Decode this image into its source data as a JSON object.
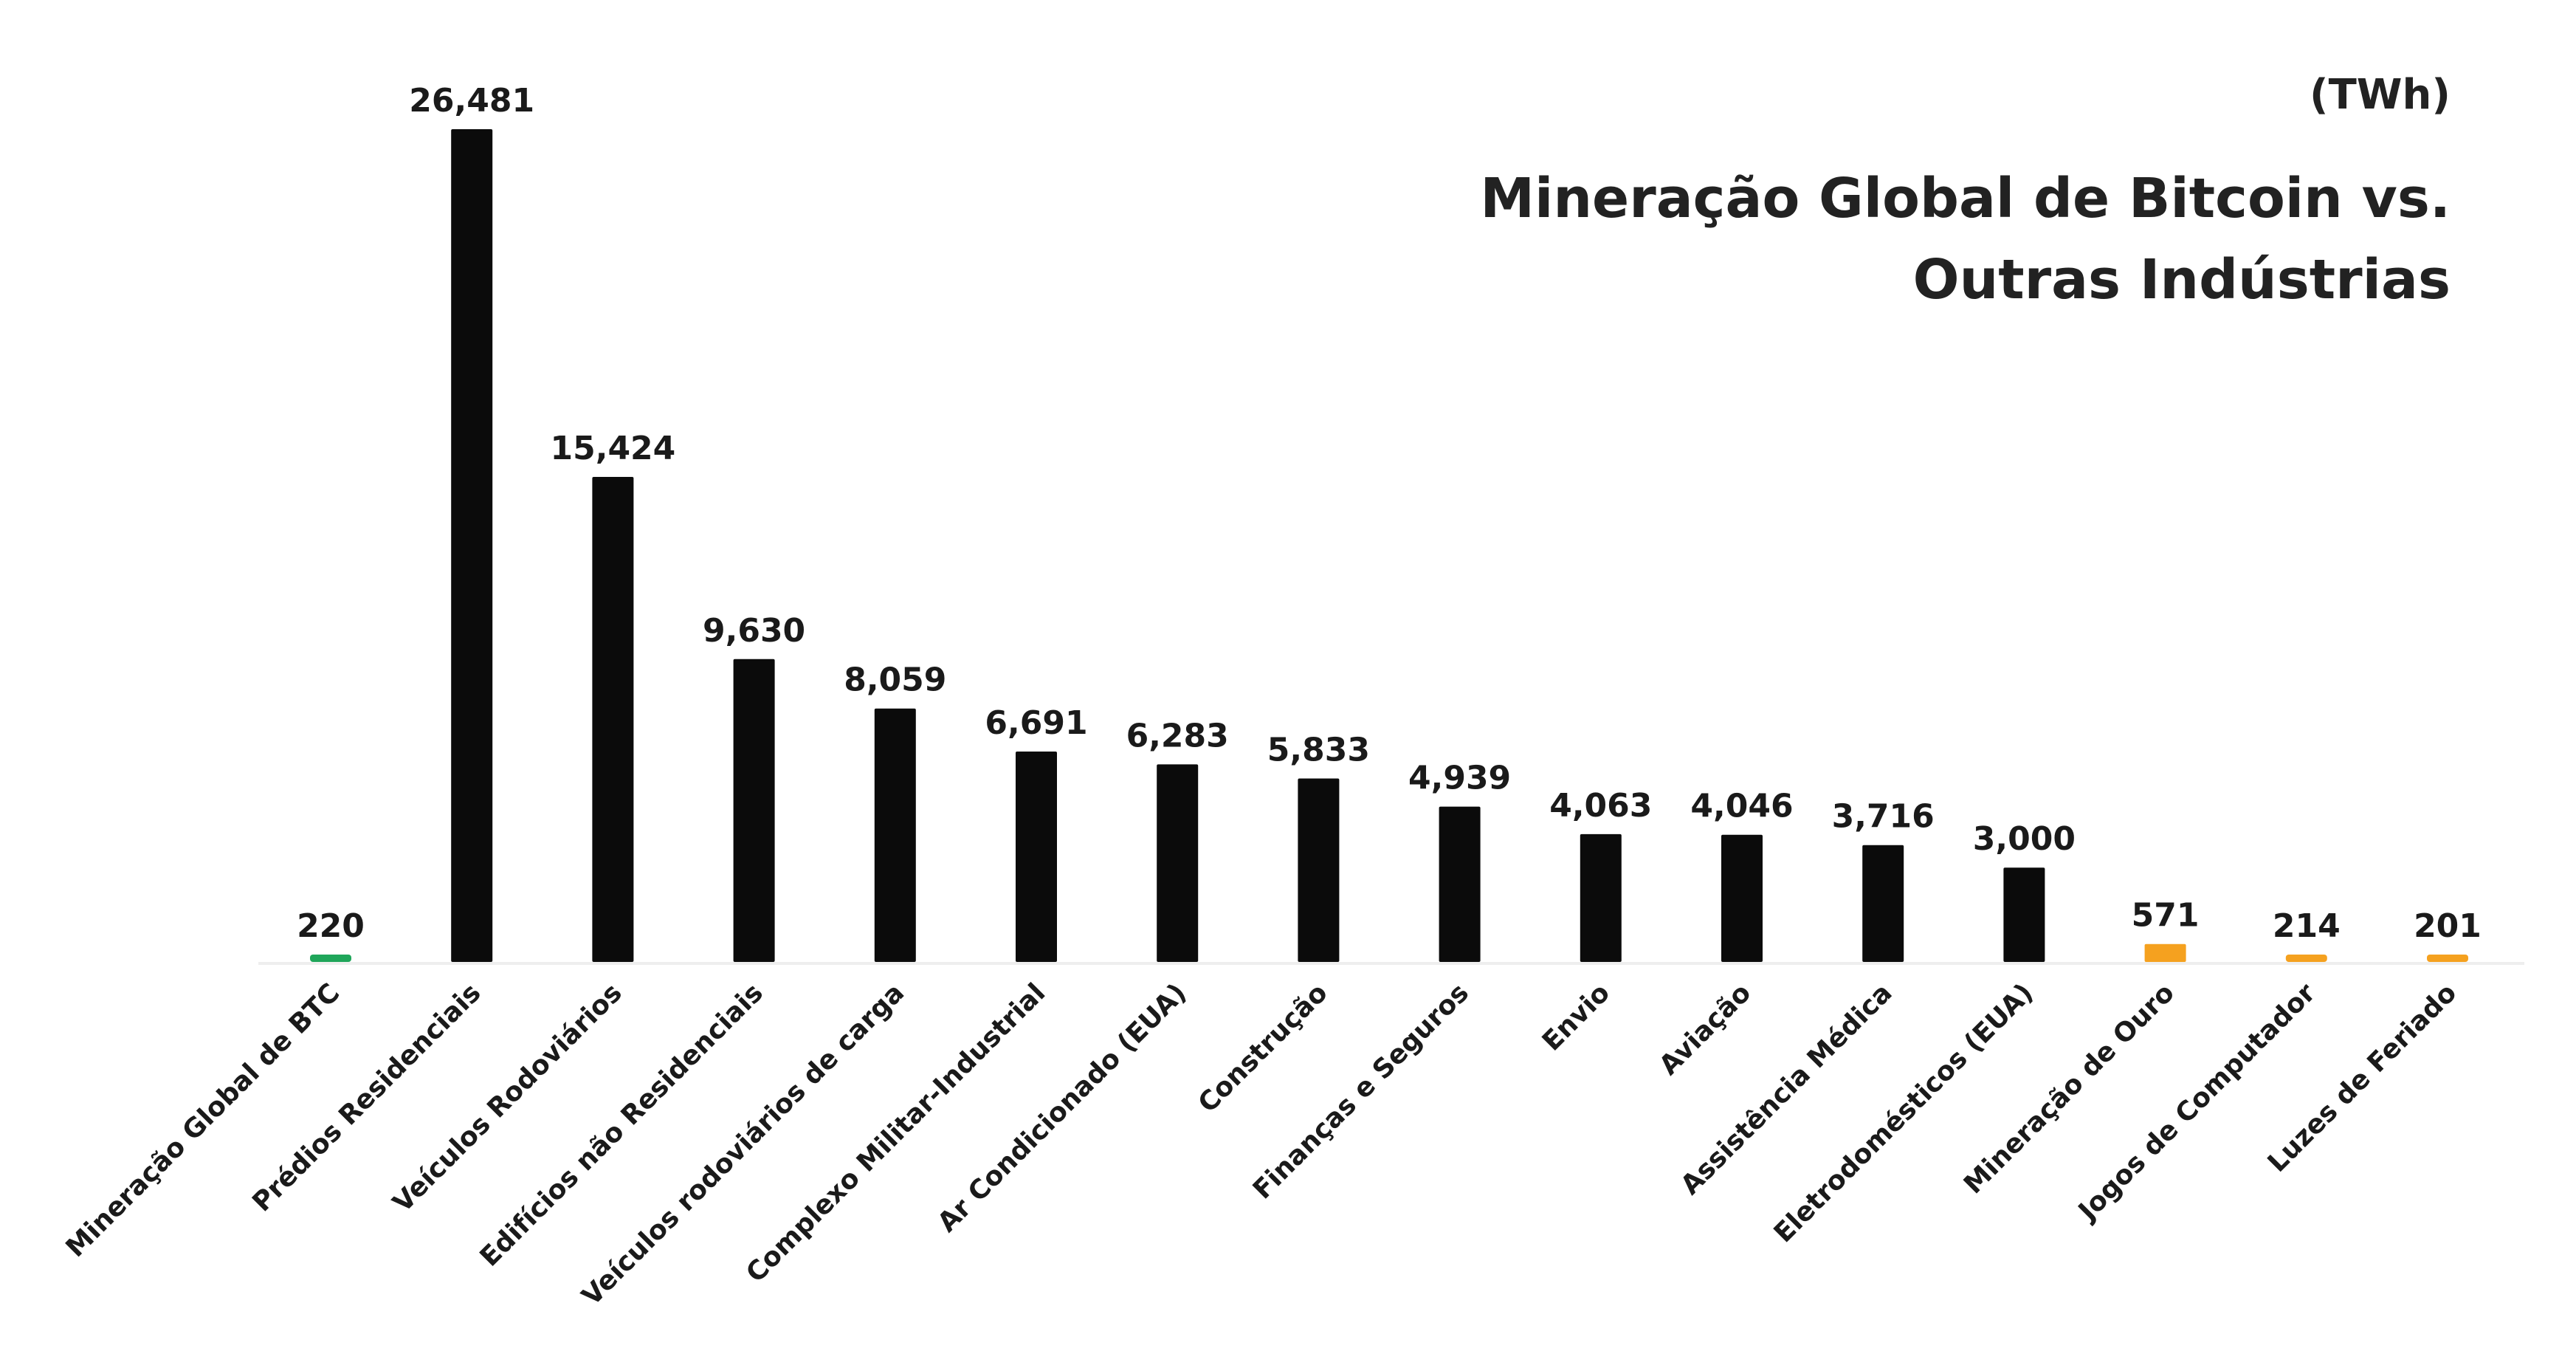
{
  "unit": "(TWh)",
  "title": {
    "line1": "Mineração Global de Bitcoin vs.",
    "line2": "Outras Indústrias"
  },
  "colors": {
    "btc": "#1fa65a",
    "industry": "#0b0b0b",
    "low": "#f5a11f",
    "axis": "#eeeeee",
    "text": "#1a1a1a"
  },
  "chart_data": {
    "type": "bar",
    "unit": "(TWh)",
    "title": "Mineração Global de Bitcoin vs. Outras Indústrias",
    "grid": false,
    "ylim": [
      0,
      26481
    ],
    "categories": [
      "Mineração Global de BTC",
      "Prédios Residenciais",
      "Veículos Rodoviários",
      "Edifícios não Residenciais",
      "Veículos rodoviários de carga",
      "Complexo Militar-Industrial",
      "Ar Condicionado (EUA)",
      "Construção",
      "Finanças e Seguros",
      "Envio",
      "Aviação",
      "Assistência Médica",
      "Eletrodomésticos (EUA)",
      "Mineração de Ouro",
      "Jogos de Computador",
      "Luzes de Feriado"
    ],
    "values": [
      220,
      26481,
      15424,
      9630,
      8059,
      6691,
      6283,
      5833,
      4939,
      4063,
      4046,
      3716,
      3000,
      571,
      214,
      201
    ],
    "value_labels": [
      "220",
      "26,481",
      "15,424",
      "9,630",
      "8,059",
      "6,691",
      "6,283",
      "5,833",
      "4,939",
      "4,063",
      "4,046",
      "3,716",
      "3,000",
      "571",
      "214",
      "201"
    ],
    "bar_colors": [
      "btc",
      "industry",
      "industry",
      "industry",
      "industry",
      "industry",
      "industry",
      "industry",
      "industry",
      "industry",
      "industry",
      "industry",
      "industry",
      "low",
      "low",
      "low"
    ]
  }
}
